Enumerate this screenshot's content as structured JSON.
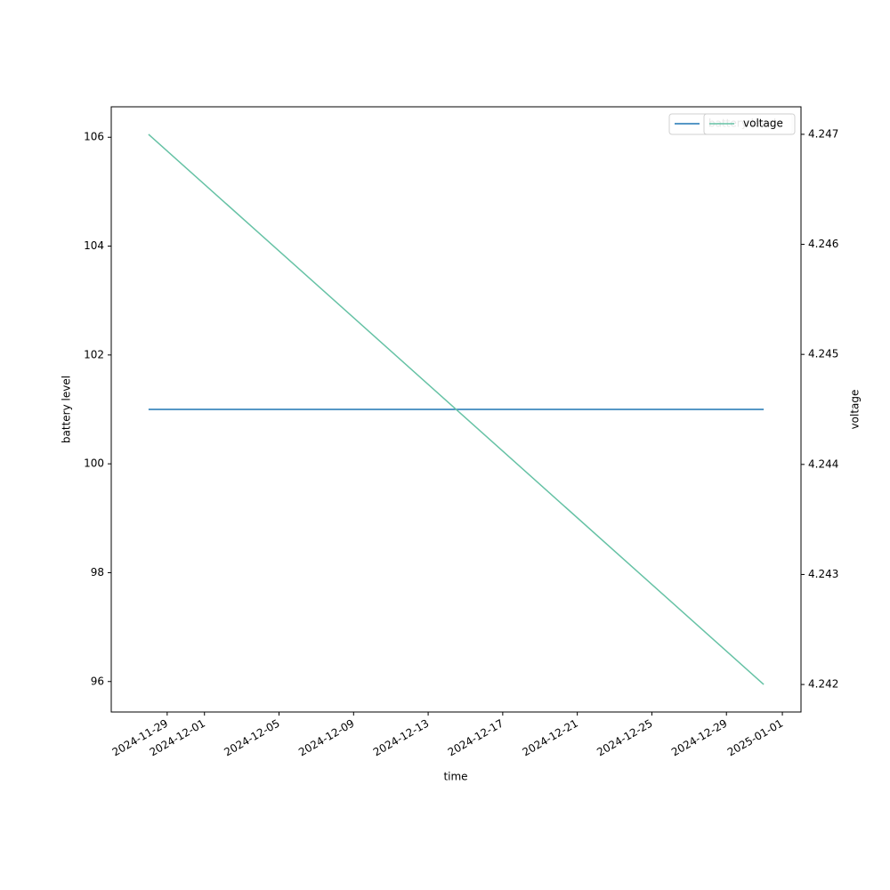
{
  "chart_data": {
    "type": "line",
    "x": [
      "2024-11-28",
      "2024-12-31"
    ],
    "xlabel": "time",
    "ylabel": "battery level",
    "y2label": "voltage",
    "series": [
      {
        "name": "battery level",
        "color": "#1f77b4",
        "values": [
          101,
          101
        ]
      },
      {
        "name": "voltage",
        "color": "#66c2a5",
        "axis": "y2",
        "values": [
          4.247,
          4.242
        ]
      }
    ],
    "xlim": [
      "2024-11-26",
      "2025-01-02"
    ],
    "xticks": [
      "2024-11-29",
      "2024-12-01",
      "2024-12-05",
      "2024-12-09",
      "2024-12-13",
      "2024-12-17",
      "2024-12-21",
      "2024-12-25",
      "2024-12-29",
      "2025-01-01"
    ],
    "ylim": [
      95.44,
      106.56
    ],
    "yticks": [
      96,
      98,
      100,
      102,
      104,
      106
    ],
    "y2lim": [
      4.24175,
      4.24725
    ],
    "y2ticks": [
      4.242,
      4.243,
      4.244,
      4.245,
      4.246,
      4.247
    ],
    "legend": "upper right"
  }
}
